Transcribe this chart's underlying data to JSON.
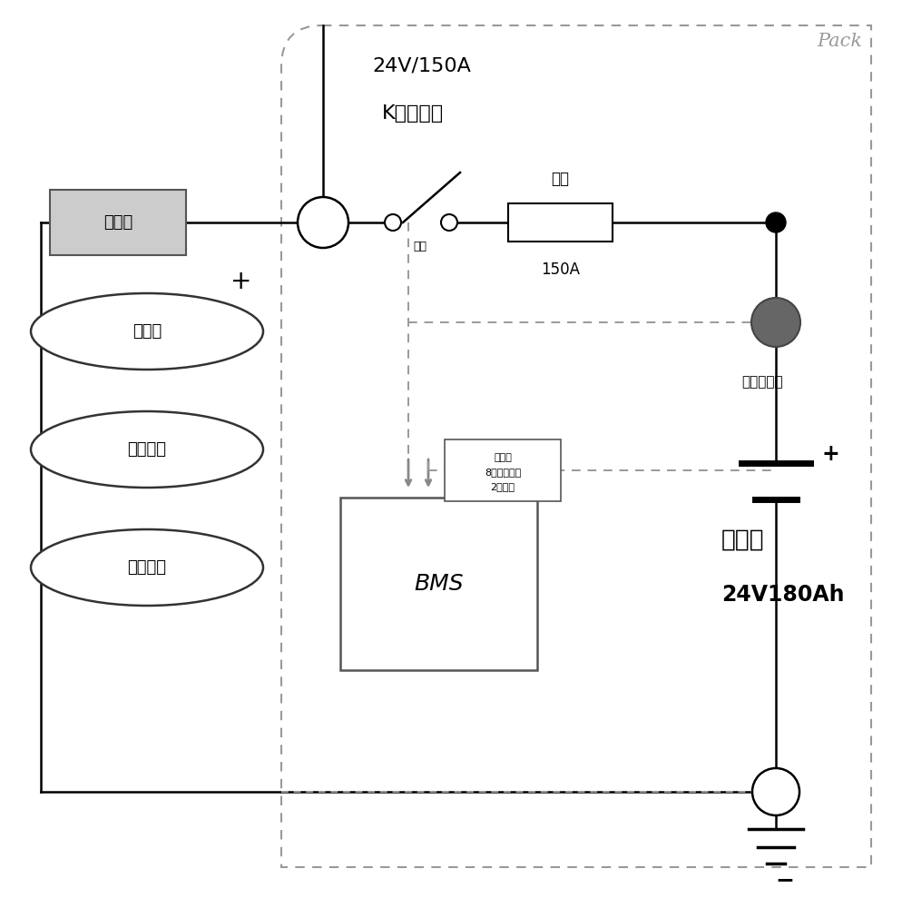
{
  "bg_color": "#ffffff",
  "fig_width": 9.94,
  "fig_height": 10.0,
  "pack_label": "Pack",
  "title_line1": "24V/150A",
  "title_line2": "K（常开）",
  "fuse_box_label": "保险盒",
  "fuse_label": "保险",
  "fuse_150a": "150A",
  "current_sensor_label": "电流传感器",
  "current_label": "电流",
  "battery_label": "锂电池",
  "battery_spec": "24V180Ah",
  "bms_label": "BMS",
  "voltage_box_line1": "总电压",
  "voltage_box_line2": "8个模块电压",
  "voltage_box_line3": "2个温度",
  "generator_label": "发电机",
  "vehicle_power_label": "整车供电",
  "parking_ac_label": "驻车空调",
  "plus_sign": "+",
  "minus_sign": "−",
  "line_color": "#000000",
  "dashed_color": "#999999",
  "gray_arrow_color": "#888888",
  "fuse_box_fill": "#cccccc",
  "sensor_fill": "#666666",
  "lw_main": 1.8,
  "lw_dashed": 1.4,
  "lw_pack": 1.5
}
